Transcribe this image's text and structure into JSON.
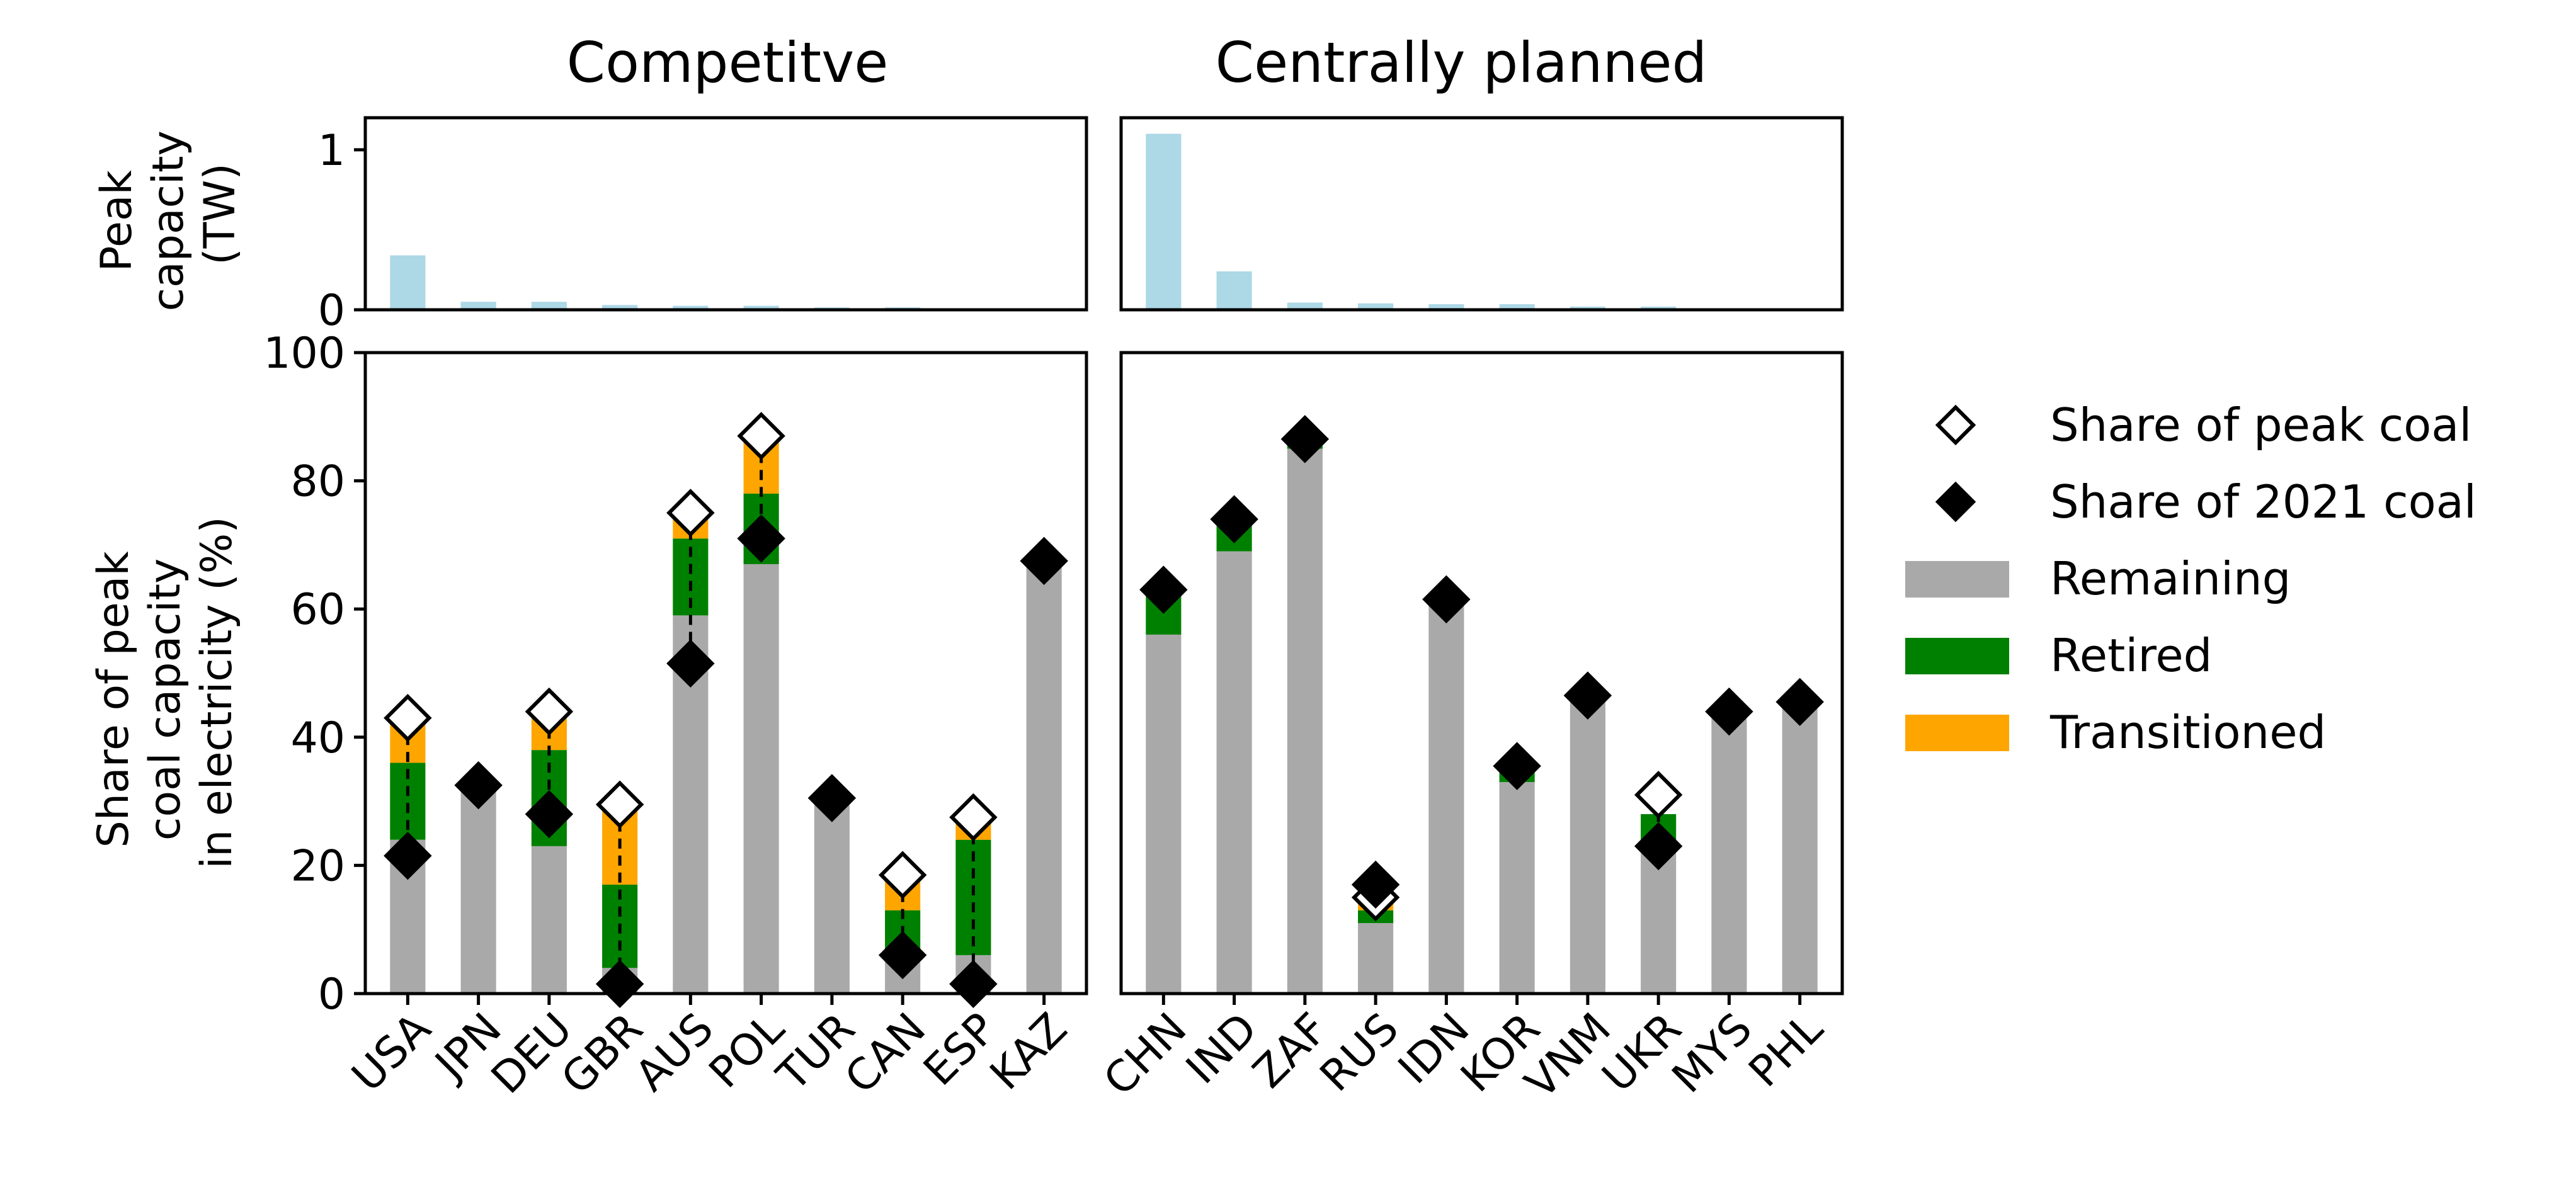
{
  "chart_data": [
    {
      "type": "bar",
      "panel": "top-left",
      "title": "Competitve",
      "ylabel": "Peak\ncapacity\n(TW)",
      "ylim": [
        0,
        1.2
      ],
      "yticks": [
        0,
        1
      ],
      "categories": [
        "USA",
        "JPN",
        "DEU",
        "GBR",
        "AUS",
        "POL",
        "TUR",
        "CAN",
        "ESP",
        "KAZ"
      ],
      "values": [
        0.34,
        0.05,
        0.05,
        0.03,
        0.025,
        0.025,
        0.015,
        0.015,
        0.01,
        0.01
      ],
      "color": "#add8e6"
    },
    {
      "type": "bar",
      "panel": "top-right",
      "title": "Centrally planned",
      "ylim": [
        0,
        1.2
      ],
      "categories": [
        "CHN",
        "IND",
        "ZAF",
        "RUS",
        "IDN",
        "KOR",
        "VNM",
        "UKR",
        "MYS",
        "PHL"
      ],
      "values": [
        1.1,
        0.24,
        0.045,
        0.04,
        0.035,
        0.035,
        0.02,
        0.02,
        0.01,
        0.005
      ],
      "color": "#add8e6"
    },
    {
      "type": "bar",
      "stacked": true,
      "panel": "bottom-left",
      "ylabel": "Share of peak\ncoal capacity\nin electricity (%)",
      "ylim": [
        0,
        100
      ],
      "yticks": [
        0,
        20,
        40,
        60,
        80,
        100
      ],
      "categories": [
        "USA",
        "JPN",
        "DEU",
        "GBR",
        "AUS",
        "POL",
        "TUR",
        "CAN",
        "ESP",
        "KAZ"
      ],
      "series": [
        {
          "name": "Remaining",
          "color": "#a9a9a9",
          "values": [
            24,
            32,
            23,
            4,
            59,
            67,
            30,
            6,
            6,
            67
          ]
        },
        {
          "name": "Retired",
          "color": "#008000",
          "values": [
            12,
            0,
            15,
            13,
            12,
            11,
            0,
            7,
            18,
            0
          ]
        },
        {
          "name": "Transitioned",
          "color": "#ffa500",
          "values": [
            7,
            0,
            6,
            12,
            4,
            8,
            0,
            5,
            3,
            0
          ]
        }
      ],
      "peak_share": [
        43,
        null,
        44,
        29.5,
        75,
        87,
        null,
        18.5,
        27.5,
        null
      ],
      "share_2021": [
        21.5,
        32.5,
        28,
        1.5,
        51.5,
        71,
        30.5,
        6,
        1.5,
        67.5
      ]
    },
    {
      "type": "bar",
      "stacked": true,
      "panel": "bottom-right",
      "ylim": [
        0,
        100
      ],
      "categories": [
        "CHN",
        "IND",
        "ZAF",
        "RUS",
        "IDN",
        "KOR",
        "VNM",
        "UKR",
        "MYS",
        "PHL"
      ],
      "series": [
        {
          "name": "Remaining",
          "color": "#a9a9a9",
          "values": [
            56,
            69,
            85,
            11,
            61,
            33,
            46,
            24,
            43,
            45
          ]
        },
        {
          "name": "Retired",
          "color": "#008000",
          "values": [
            6,
            4,
            1,
            2,
            0,
            2,
            0,
            4,
            0,
            0
          ]
        },
        {
          "name": "Transitioned",
          "color": "#ffa500",
          "values": [
            0,
            0,
            0,
            1,
            0,
            0,
            0,
            0,
            0,
            0
          ]
        }
      ],
      "peak_share": [
        null,
        null,
        null,
        15,
        null,
        null,
        null,
        31,
        null,
        null
      ],
      "share_2021": [
        63,
        74,
        86.5,
        17,
        61.5,
        35.5,
        46.5,
        23,
        44,
        45.5
      ]
    }
  ],
  "legend": {
    "placement": "right",
    "items": [
      {
        "label": "Share of peak coal",
        "marker": "hollow-diamond"
      },
      {
        "label": "Share of 2021 coal",
        "marker": "filled-diamond"
      },
      {
        "label": "Remaining",
        "color": "#a9a9a9"
      },
      {
        "label": "Retired",
        "color": "#008000"
      },
      {
        "label": "Transitioned",
        "color": "#ffa500"
      }
    ]
  }
}
